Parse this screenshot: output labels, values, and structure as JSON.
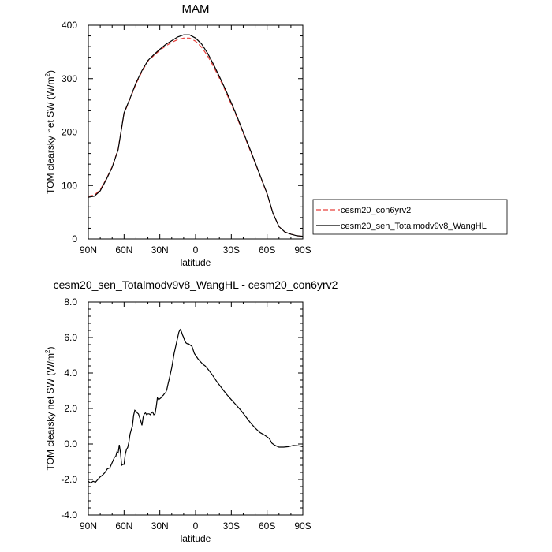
{
  "chart_data": [
    {
      "type": "line",
      "title": "MAM",
      "xlabel": "latitude",
      "ylabel_main": "TOM clearsky net SW (W/m",
      "ylabel_sup": "2",
      "ylabel_tail": ")",
      "xlim": [
        90,
        -90
      ],
      "ylim": [
        0,
        400
      ],
      "xticks": [
        {
          "v": 90,
          "label": "90N"
        },
        {
          "v": 60,
          "label": "60N"
        },
        {
          "v": 30,
          "label": "30N"
        },
        {
          "v": 0,
          "label": "0"
        },
        {
          "v": -30,
          "label": "30S"
        },
        {
          "v": -60,
          "label": "60S"
        },
        {
          "v": -90,
          "label": "90S"
        }
      ],
      "yticks": [
        {
          "v": 0,
          "label": "0"
        },
        {
          "v": 100,
          "label": "100"
        },
        {
          "v": 200,
          "label": "200"
        },
        {
          "v": 300,
          "label": "300"
        },
        {
          "v": 400,
          "label": "400"
        }
      ],
      "legend_placement": "right",
      "series": [
        {
          "name": "cesm20_con6yrv2",
          "color": "#e8413c",
          "dash": "dashed",
          "x": [
            90,
            85,
            80,
            75,
            70,
            65,
            60,
            55,
            50,
            45,
            40,
            35,
            30,
            25,
            20,
            15,
            10,
            5,
            0,
            -5,
            -10,
            -15,
            -20,
            -25,
            -30,
            -35,
            -40,
            -45,
            -50,
            -55,
            -60,
            -65,
            -70,
            -75,
            -80,
            -85,
            -90
          ],
          "y": [
            80,
            82,
            92,
            112,
            135,
            168,
            235,
            262,
            290,
            313,
            333,
            343,
            353,
            361,
            368,
            373,
            376,
            376,
            370,
            359,
            343,
            323,
            301,
            277,
            252,
            226,
            198,
            170,
            142,
            113,
            84,
            48,
            23,
            13,
            9,
            6,
            5
          ]
        },
        {
          "name": "cesm20_sen_Totalmodv9v8_WangHL",
          "color": "#000000",
          "dash": "solid",
          "x": [
            90,
            85,
            80,
            75,
            70,
            65,
            60,
            55,
            50,
            45,
            40,
            35,
            30,
            25,
            20,
            15,
            10,
            5,
            0,
            -5,
            -10,
            -15,
            -20,
            -25,
            -30,
            -35,
            -40,
            -45,
            -50,
            -55,
            -60,
            -65,
            -70,
            -75,
            -80,
            -85,
            -90
          ],
          "y": [
            78,
            80,
            90,
            111,
            134,
            167,
            236,
            263,
            292,
            315,
            334,
            345,
            355,
            364,
            371,
            378,
            382,
            382,
            376,
            365,
            348,
            327,
            304,
            280,
            255,
            228,
            200,
            172,
            143,
            114,
            85,
            48,
            23,
            13,
            9,
            6,
            5
          ]
        }
      ]
    },
    {
      "type": "line",
      "title": "cesm20_sen_Totalmodv9v8_WangHL - cesm20_con6yrv2",
      "xlabel": "latitude",
      "ylabel_main": "TOM clearsky net SW (W/m",
      "ylabel_sup": "2",
      "ylabel_tail": ")",
      "xlim": [
        90,
        -90
      ],
      "ylim": [
        -4.0,
        8.0
      ],
      "xticks": [
        {
          "v": 90,
          "label": "90N"
        },
        {
          "v": 60,
          "label": "60N"
        },
        {
          "v": 30,
          "label": "30N"
        },
        {
          "v": 0,
          "label": "0"
        },
        {
          "v": -30,
          "label": "30S"
        },
        {
          "v": -60,
          "label": "60S"
        },
        {
          "v": -90,
          "label": "90S"
        }
      ],
      "yticks": [
        {
          "v": -4.0,
          "label": "-4.0"
        },
        {
          "v": -2.0,
          "label": "-2.0"
        },
        {
          "v": 0.0,
          "label": "0.0"
        },
        {
          "v": 2.0,
          "label": "2.0"
        },
        {
          "v": 4.0,
          "label": "4.0"
        },
        {
          "v": 6.0,
          "label": "6.0"
        },
        {
          "v": 8.0,
          "label": "8.0"
        }
      ],
      "series": [
        {
          "color": "#000000",
          "dash": "solid",
          "x": [
            90,
            88,
            86,
            84,
            82,
            80,
            78,
            76,
            74,
            72,
            70,
            68,
            67,
            66,
            65,
            64,
            63,
            62,
            61,
            60,
            59,
            58,
            57,
            56,
            55,
            54,
            53,
            52,
            51,
            50,
            49,
            48,
            47,
            46,
            45,
            44,
            43,
            42,
            41,
            40,
            39,
            38,
            37,
            36,
            35,
            34,
            33,
            32,
            31,
            30,
            29,
            28,
            27,
            26,
            25,
            24,
            23,
            22,
            21,
            20,
            19,
            18,
            17,
            16,
            15,
            14,
            13,
            12,
            11,
            10,
            9,
            8,
            7,
            6,
            5,
            4,
            3,
            2,
            1,
            0,
            -2,
            -4,
            -6,
            -8,
            -10,
            -14,
            -18,
            -22,
            -26,
            -30,
            -34,
            -38,
            -42,
            -46,
            -50,
            -54,
            -58,
            -62,
            -64,
            -66,
            -68,
            -70,
            -74,
            -78,
            -82,
            -86,
            -88,
            -90
          ],
          "y": [
            -2.1,
            -2.2,
            -2.1,
            -2.15,
            -2.0,
            -1.85,
            -1.75,
            -1.6,
            -1.4,
            -1.35,
            -1.05,
            -0.75,
            -0.7,
            -0.45,
            -0.5,
            -0.05,
            -0.5,
            -1.2,
            -1.15,
            -1.15,
            -0.6,
            -0.3,
            -0.2,
            0.1,
            0.55,
            0.8,
            1.0,
            1.6,
            1.9,
            1.85,
            1.75,
            1.7,
            1.5,
            1.3,
            1.05,
            1.5,
            1.7,
            1.75,
            1.65,
            1.7,
            1.7,
            1.65,
            1.75,
            1.8,
            1.65,
            1.7,
            2.1,
            2.6,
            2.5,
            2.55,
            2.6,
            2.7,
            2.75,
            2.85,
            2.9,
            3.1,
            3.4,
            3.7,
            4.0,
            4.3,
            4.7,
            5.1,
            5.4,
            5.7,
            6.0,
            6.3,
            6.45,
            6.35,
            6.15,
            6.0,
            5.8,
            5.7,
            5.65,
            5.65,
            5.6,
            5.55,
            5.5,
            5.3,
            5.1,
            5.0,
            4.8,
            4.65,
            4.5,
            4.4,
            4.25,
            3.9,
            3.5,
            3.15,
            2.8,
            2.5,
            2.2,
            1.9,
            1.55,
            1.2,
            0.9,
            0.65,
            0.5,
            0.3,
            0.05,
            -0.05,
            -0.12,
            -0.18,
            -0.18,
            -0.15,
            -0.08,
            -0.1,
            -0.12,
            -0.15
          ]
        }
      ]
    }
  ]
}
